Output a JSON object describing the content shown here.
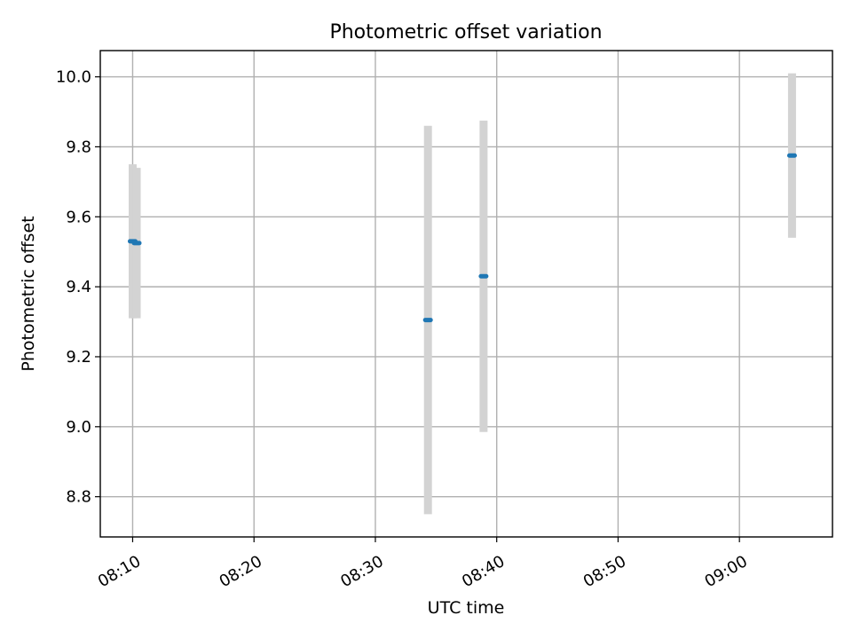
{
  "chart_data": {
    "type": "scatter",
    "title": "Photometric offset variation",
    "xlabel": "UTC time",
    "ylabel": "Photometric offset",
    "x_tick_labels": [
      "08:10",
      "08:20",
      "08:30",
      "08:40",
      "08:50",
      "09:00"
    ],
    "x_ticks": [
      "08:10",
      "08:20",
      "08:30",
      "08:40",
      "08:50",
      "09:00"
    ],
    "y_ticks": [
      8.8,
      9.0,
      9.2,
      9.4,
      9.6,
      9.8,
      10.0
    ],
    "y_tick_labels": [
      "8.8",
      "9.0",
      "9.2",
      "9.4",
      "9.6",
      "9.8",
      "10.0"
    ],
    "xlim": [
      "08:07:20",
      "09:07:40"
    ],
    "ylim": [
      8.685,
      10.075
    ],
    "grid": true,
    "series": [
      {
        "marker_color": "#1f77b4",
        "errorbar_color": "#d3d3d3",
        "points": [
          {
            "x": "08:10:00",
            "y": 9.53,
            "err": 0.22
          },
          {
            "x": "08:10:20",
            "y": 9.525,
            "err": 0.215
          },
          {
            "x": "08:34:20",
            "y": 9.305,
            "err": 0.555
          },
          {
            "x": "08:38:55",
            "y": 9.43,
            "err": 0.445
          },
          {
            "x": "09:04:20",
            "y": 9.775,
            "err": 0.235
          }
        ]
      }
    ]
  }
}
